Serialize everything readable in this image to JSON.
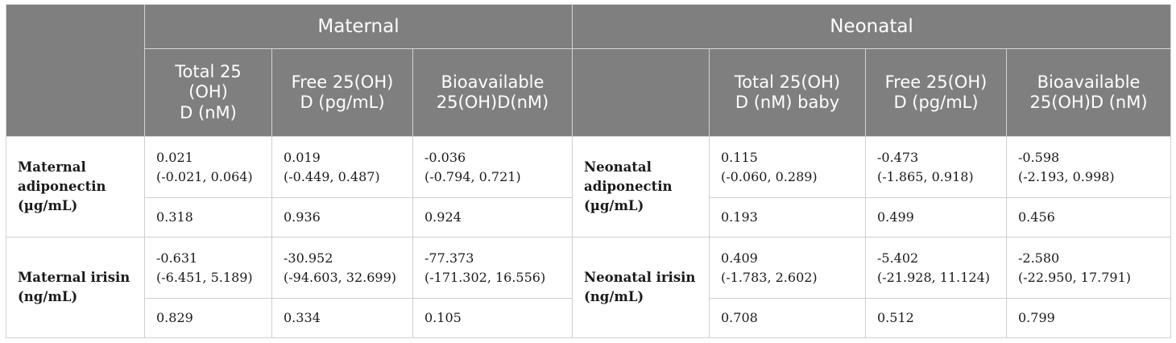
{
  "header": {
    "maternal": "Maternal",
    "neonatal": "Neonatal",
    "maternal_cols": [
      [
        "Total 25",
        "(OH)",
        "D (nM)"
      ],
      [
        "Free 25(OH)",
        "D (pg/mL)"
      ],
      [
        "Bioavailable",
        "25(OH)D(nM)"
      ]
    ],
    "neonatal_cols": [
      [
        "Total 25(OH)",
        "D (nM) baby"
      ],
      [
        "Free 25(OH)",
        "D (pg/mL)"
      ],
      [
        "Bioavailable",
        "25(OH)D (nM)"
      ]
    ]
  },
  "groups": [
    {
      "maternal_label": [
        "Maternal",
        "adiponectin",
        "(µg/mL)"
      ],
      "neonatal_label": [
        "Neonatal",
        "adiponectin",
        "(µg/mL)"
      ],
      "maternal_est": [
        [
          "0.021",
          "(-0.021, 0.064)"
        ],
        [
          "0.019",
          "(-0.449, 0.487)"
        ],
        [
          "-0.036",
          "(-0.794, 0.721)"
        ]
      ],
      "neonatal_est": [
        [
          "0.115",
          "(-0.060, 0.289)"
        ],
        [
          "-0.473",
          "(-1.865, 0.918)"
        ],
        [
          "-0.598",
          "(-2.193, 0.998)"
        ]
      ],
      "maternal_p": [
        "0.318",
        "0.936",
        "0.924"
      ],
      "neonatal_p": [
        "0.193",
        "0.499",
        "0.456"
      ]
    },
    {
      "maternal_label": [
        "Maternal irisin",
        "(ng/mL)"
      ],
      "neonatal_label": [
        "Neonatal irisin",
        "(ng/mL)"
      ],
      "maternal_est": [
        [
          "-0.631",
          "(-6.451, 5.189)"
        ],
        [
          "-30.952",
          "(-94.603, 32.699)"
        ],
        [
          "-77.373",
          "(-171.302, 16.556)"
        ]
      ],
      "neonatal_est": [
        [
          "0.409",
          "(-1.783, 2.602)"
        ],
        [
          "-5.402",
          "(-21.928, 11.124)"
        ],
        [
          "-2.580",
          "(-22.950, 17.791)"
        ]
      ],
      "maternal_p": [
        "0.829",
        "0.334",
        "0.105"
      ],
      "neonatal_p": [
        "0.708",
        "0.512",
        "0.799"
      ]
    }
  ]
}
